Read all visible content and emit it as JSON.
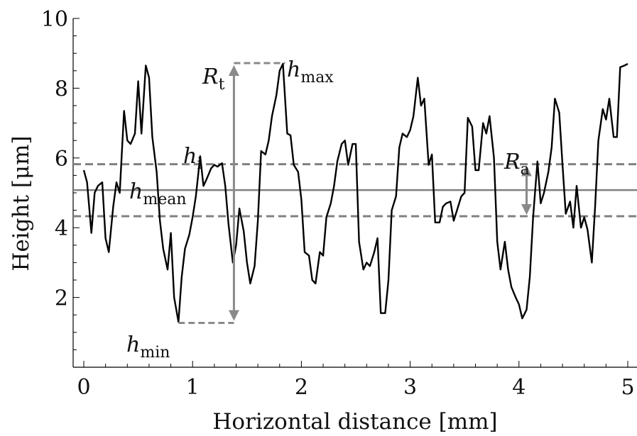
{
  "chart_data": {
    "type": "line",
    "xlabel": "Horizontal distance [mm]",
    "ylabel": "Height [μm]",
    "xlim": [
      0,
      5
    ],
    "ylim": [
      0,
      10
    ],
    "x_ticks": [
      "0",
      "1",
      "2",
      "3",
      "4",
      "5"
    ],
    "y_ticks": [
      "2",
      "4",
      "6",
      "8",
      "10"
    ],
    "grid": false,
    "series": [
      {
        "color": "#000000",
        "points": [
          [
            0.0,
            5.65
          ],
          [
            0.03,
            5.3
          ],
          [
            0.07,
            3.85
          ],
          [
            0.1,
            5.0
          ],
          [
            0.13,
            5.2
          ],
          [
            0.17,
            5.3
          ],
          [
            0.2,
            3.7
          ],
          [
            0.23,
            3.3
          ],
          [
            0.27,
            4.6
          ],
          [
            0.3,
            5.3
          ],
          [
            0.33,
            5.0
          ],
          [
            0.37,
            7.35
          ],
          [
            0.4,
            6.5
          ],
          [
            0.43,
            6.4
          ],
          [
            0.47,
            6.7
          ],
          [
            0.5,
            8.2
          ],
          [
            0.53,
            6.7
          ],
          [
            0.57,
            8.65
          ],
          [
            0.6,
            8.3
          ],
          [
            0.63,
            6.6
          ],
          [
            0.67,
            5.6
          ],
          [
            0.7,
            4.2
          ],
          [
            0.73,
            3.4
          ],
          [
            0.77,
            2.8
          ],
          [
            0.8,
            3.85
          ],
          [
            0.83,
            2.0
          ],
          [
            0.87,
            1.3
          ],
          [
            0.9,
            2.6
          ],
          [
            0.93,
            3.4
          ],
          [
            0.97,
            3.8
          ],
          [
            1.0,
            4.3
          ],
          [
            1.03,
            4.9
          ],
          [
            1.07,
            6.05
          ],
          [
            1.1,
            5.2
          ],
          [
            1.13,
            5.4
          ],
          [
            1.17,
            5.7
          ],
          [
            1.2,
            5.8
          ],
          [
            1.23,
            5.75
          ],
          [
            1.27,
            5.85
          ],
          [
            1.3,
            5.2
          ],
          [
            1.33,
            4.1
          ],
          [
            1.37,
            3.0
          ],
          [
            1.4,
            3.5
          ],
          [
            1.43,
            4.55
          ],
          [
            1.47,
            3.9
          ],
          [
            1.5,
            3.0
          ],
          [
            1.53,
            2.4
          ],
          [
            1.57,
            2.9
          ],
          [
            1.6,
            4.2
          ],
          [
            1.63,
            6.2
          ],
          [
            1.67,
            6.1
          ],
          [
            1.7,
            6.5
          ],
          [
            1.73,
            7.2
          ],
          [
            1.77,
            7.8
          ],
          [
            1.8,
            8.5
          ],
          [
            1.83,
            8.7
          ],
          [
            1.87,
            6.7
          ],
          [
            1.9,
            6.65
          ],
          [
            1.93,
            5.8
          ],
          [
            1.97,
            5.6
          ],
          [
            2.0,
            4.8
          ],
          [
            2.03,
            3.3
          ],
          [
            2.07,
            3.2
          ],
          [
            2.1,
            2.5
          ],
          [
            2.13,
            2.4
          ],
          [
            2.17,
            3.3
          ],
          [
            2.2,
            3.2
          ],
          [
            2.23,
            4.3
          ],
          [
            2.27,
            4.7
          ],
          [
            2.3,
            5.2
          ],
          [
            2.33,
            5.9
          ],
          [
            2.37,
            6.4
          ],
          [
            2.4,
            6.5
          ],
          [
            2.43,
            5.8
          ],
          [
            2.47,
            6.4
          ],
          [
            2.5,
            6.4
          ],
          [
            2.53,
            3.6
          ],
          [
            2.57,
            2.8
          ],
          [
            2.6,
            3.0
          ],
          [
            2.63,
            2.9
          ],
          [
            2.67,
            3.3
          ],
          [
            2.7,
            3.7
          ],
          [
            2.73,
            1.55
          ],
          [
            2.77,
            1.55
          ],
          [
            2.8,
            2.5
          ],
          [
            2.83,
            4.5
          ],
          [
            2.87,
            4.9
          ],
          [
            2.9,
            6.3
          ],
          [
            2.93,
            6.7
          ],
          [
            2.97,
            6.6
          ],
          [
            3.0,
            6.8
          ],
          [
            3.03,
            7.2
          ],
          [
            3.07,
            8.3
          ],
          [
            3.1,
            7.5
          ],
          [
            3.13,
            7.7
          ],
          [
            3.17,
            5.8
          ],
          [
            3.2,
            6.1
          ],
          [
            3.23,
            4.15
          ],
          [
            3.27,
            4.15
          ],
          [
            3.3,
            4.6
          ],
          [
            3.33,
            4.7
          ],
          [
            3.37,
            4.75
          ],
          [
            3.4,
            4.2
          ],
          [
            3.43,
            4.5
          ],
          [
            3.47,
            4.9
          ],
          [
            3.5,
            5.0
          ],
          [
            3.53,
            7.15
          ],
          [
            3.57,
            6.9
          ],
          [
            3.6,
            5.65
          ],
          [
            3.63,
            5.65
          ],
          [
            3.67,
            7.0
          ],
          [
            3.7,
            6.7
          ],
          [
            3.73,
            7.2
          ],
          [
            3.77,
            6.0
          ],
          [
            3.8,
            3.6
          ],
          [
            3.83,
            2.8
          ],
          [
            3.87,
            3.6
          ],
          [
            3.9,
            2.8
          ],
          [
            3.93,
            2.3
          ],
          [
            3.97,
            2.0
          ],
          [
            4.0,
            1.8
          ],
          [
            4.03,
            1.4
          ],
          [
            4.07,
            1.65
          ],
          [
            4.1,
            2.6
          ],
          [
            4.13,
            4.3
          ],
          [
            4.17,
            5.9
          ],
          [
            4.2,
            4.7
          ],
          [
            4.23,
            5.0
          ],
          [
            4.27,
            5.6
          ],
          [
            4.3,
            6.3
          ],
          [
            4.33,
            7.7
          ],
          [
            4.37,
            7.3
          ],
          [
            4.4,
            5.8
          ],
          [
            4.43,
            4.4
          ],
          [
            4.47,
            4.75
          ],
          [
            4.5,
            4.0
          ],
          [
            4.53,
            5.2
          ],
          [
            4.57,
            4.0
          ],
          [
            4.6,
            4.3
          ],
          [
            4.63,
            3.95
          ],
          [
            4.67,
            3.0
          ],
          [
            4.7,
            4.6
          ],
          [
            4.73,
            6.5
          ],
          [
            4.77,
            7.4
          ],
          [
            4.8,
            7.1
          ],
          [
            4.83,
            7.7
          ],
          [
            4.87,
            6.6
          ],
          [
            4.9,
            6.6
          ],
          [
            4.93,
            8.6
          ],
          [
            4.97,
            8.65
          ],
          [
            5.0,
            8.7
          ]
        ]
      }
    ],
    "reference_lines": [
      {
        "y": 5.08,
        "style": "solid",
        "color": "#808080"
      },
      {
        "y": 5.82,
        "style": "dashed",
        "color": "#808080"
      },
      {
        "y": 4.33,
        "style": "dashed",
        "color": "#808080"
      }
    ],
    "annotations": {
      "rt": {
        "main": "R",
        "sub": "t",
        "x": 1.38,
        "y_from": 1.27,
        "y_to": 8.72
      },
      "ra": {
        "main": "R",
        "sub": "a",
        "x": 4.07,
        "y_from": 4.33,
        "y_to": 5.82
      },
      "hmax": {
        "main": "h",
        "sub": "max",
        "x_from": 1.38,
        "x_to": 1.85,
        "y": 8.72
      },
      "hmin": {
        "main": "h",
        "sub": "min",
        "x_from": 0.87,
        "x_to": 1.38,
        "y": 1.27
      },
      "hi": {
        "main": "h",
        "sub": "i",
        "x": 1.07,
        "y": 6.05
      },
      "hmean": {
        "main": "h",
        "sub": "mean"
      }
    }
  }
}
